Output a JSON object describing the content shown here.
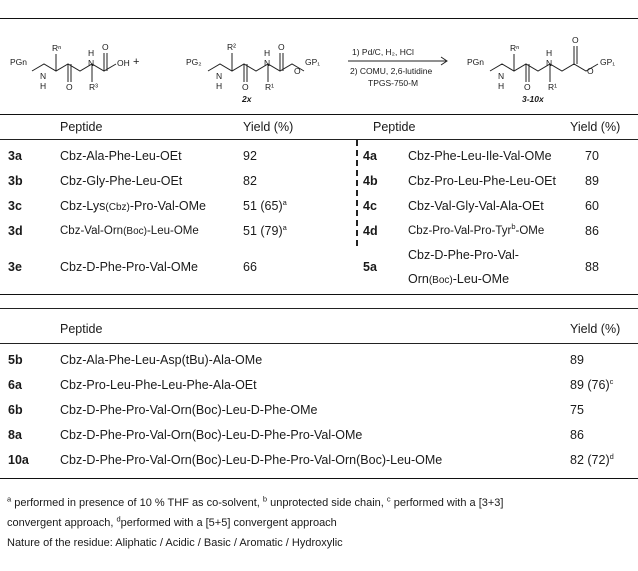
{
  "scheme": {
    "reactant1_pg": "PGn",
    "reactant1_r_top": "Rⁿ",
    "reactant1_r_bottom": "R³",
    "reactant1_oh": "OH",
    "plus": "+",
    "reactant2_pg": "PG₂",
    "reactant2_r_top": "R²",
    "reactant2_r_bottom": "R¹",
    "reactant2_gp": "GP₁",
    "reactant2_label": "2x",
    "step1": "1)  Pd/C, H₂, HCl",
    "step2": "2) COMU, 2,6-lutidine",
    "step2b": "TPGS-750-M",
    "product_pg": "PGn",
    "product_r_top": "Rⁿ",
    "product_r_bottom": "R¹",
    "product_gp": "GP₁",
    "product_label": "3-10x"
  },
  "table1": {
    "headers": {
      "peptide_left": "Peptide",
      "yield_left": "Yield (%)",
      "peptide_right": "Peptide",
      "yield_right": "Yield (%)"
    },
    "rows": [
      {
        "id_l": "3a",
        "pep_l": "Cbz-Ala-Phe-Leu-OEt",
        "y_l": "92",
        "id_r": "4a",
        "pep_r": "Cbz-Phe-Leu-Ile-Val-OMe",
        "y_r": "70"
      },
      {
        "id_l": "3b",
        "pep_l": "Cbz-Gly-Phe-Leu-OEt",
        "y_l": "82",
        "id_r": "4b",
        "pep_r": "Cbz-Pro-Leu-Phe-Leu-OEt",
        "y_r": "89"
      },
      {
        "id_l": "3c",
        "pep_l_a": "Cbz-Lys",
        "pep_l_b": "(Cbz)",
        "pep_l_c": "-Pro-Val-OMe",
        "y_l": "51 (65)",
        "y_l_sup": "a",
        "id_r": "4c",
        "pep_r": "Cbz-Val-Gly-Val-Ala-OEt",
        "y_r": "60"
      },
      {
        "id_l": "3d",
        "pep_l_a": "Cbz-Val-Orn",
        "pep_l_b": "(Boc)",
        "pep_l_c": "-Leu-OMe",
        "y_l": "51 (79)",
        "y_l_sup": "a",
        "id_r": "4d",
        "pep_r_a": "Cbz-Pro-Val-Pro-Tyr",
        "pep_r_sup": "b",
        "pep_r_c": "-OMe",
        "y_r": "86"
      },
      {
        "id_l": "3e",
        "pep_l": "Cbz-D-Phe-Pro-Val-OMe",
        "y_l": "66",
        "id_r": "5a",
        "pep_r_line1": "Cbz-D-Phe-Pro-Val-",
        "pep_r_line2_a": "Orn",
        "pep_r_line2_b": "(Boc)",
        "pep_r_line2_c": "-Leu-OMe",
        "y_r": "88"
      }
    ]
  },
  "table2": {
    "headers": {
      "peptide": "Peptide",
      "yield": "Yield (%)"
    },
    "rows": [
      {
        "id": "5b",
        "pep": "Cbz-Ala-Phe-Leu-Asp(tBu)-Ala-OMe",
        "y": "89",
        "sup": ""
      },
      {
        "id": "6a",
        "pep": "Cbz-Pro-Leu-Phe-Leu-Phe-Ala-OEt",
        "y": "89 (76)",
        "sup": "c"
      },
      {
        "id": "6b",
        "pep": "Cbz-D-Phe-Pro-Val-Orn(Boc)-Leu-D-Phe-OMe",
        "y": "75",
        "sup": ""
      },
      {
        "id": "8a",
        "pep": "Cbz-D-Phe-Pro-Val-Orn(Boc)-Leu-D-Phe-Pro-Val-OMe",
        "y": "86",
        "sup": ""
      },
      {
        "id": "10a",
        "pep": "Cbz-D-Phe-Pro-Val-Orn(Boc)-Leu-D-Phe-Pro-Val-Orn(Boc)-Leu-OMe",
        "y": "82 (72)",
        "sup": "d"
      }
    ]
  },
  "footnotes": {
    "a_sup": "a",
    "a_text": " performed in presence of 10 % THF as co-solvent, ",
    "b_sup": "b",
    "b_text": " unprotected side chain, ",
    "c_sup": "c",
    "c_text": " performed with a [3+3]",
    "line2": "convergent approach, ",
    "d_sup": "d",
    "d_text": "performed with a [5+5] convergent approach",
    "nature": "Nature of the residue: Aliphatic / Acidic / Basic / Aromatic / Hydroxylic"
  }
}
